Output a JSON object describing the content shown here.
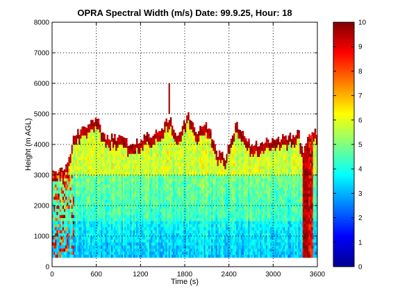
{
  "chart_data": {
    "type": "heatmap",
    "title": "OPRA Spectral Width (m/s)  Date: 99.9.25, Hour: 18",
    "xlabel": "Time (s)",
    "ylabel": "Height (m AGL)",
    "xlim": [
      0,
      3600
    ],
    "ylim": [
      0,
      8000
    ],
    "x_ticks": [
      "0",
      "600",
      "1200",
      "1800",
      "2400",
      "3000",
      "3600"
    ],
    "x_tick_values": [
      0,
      600,
      1200,
      1800,
      2400,
      3000,
      3600
    ],
    "y_ticks": [
      "0",
      "1000",
      "2000",
      "3000",
      "4000",
      "5000",
      "6000",
      "7000",
      "8000"
    ],
    "y_tick_values": [
      0,
      1000,
      2000,
      3000,
      4000,
      5000,
      6000,
      7000,
      8000
    ],
    "grid": true,
    "colorbar": {
      "range": [
        0,
        10
      ],
      "ticks": [
        "0",
        "1",
        "2",
        "3",
        "4",
        "5",
        "6",
        "7",
        "8",
        "9",
        "10"
      ],
      "tick_values": [
        0,
        1,
        2,
        3,
        4,
        5,
        6,
        7,
        8,
        9,
        10
      ],
      "colormap": "jet"
    },
    "data_height_bottom_m": 300,
    "echo_top_profile": {
      "time_s": [
        0,
        200,
        300,
        400,
        500,
        600,
        700,
        900,
        1100,
        1300,
        1450,
        1600,
        1700,
        1850,
        1950,
        2100,
        2250,
        2350,
        2500,
        2700,
        2900,
        3100,
        3250,
        3350,
        3400,
        3550,
        3600
      ],
      "top_m": [
        3100,
        3300,
        4300,
        4500,
        4600,
        4900,
        4300,
        4200,
        4000,
        4300,
        4400,
        4900,
        4300,
        5000,
        4400,
        4700,
        3700,
        3600,
        4700,
        4000,
        4100,
        4200,
        4300,
        4400,
        3800,
        4500,
        4300
      ]
    },
    "typical_width_m_s": {
      "lower_layer_300_1500m": 3.2,
      "mid_layer_1500_3000m": 4.3,
      "upper_layer_3000_top": 5.8,
      "cloud_top_edge": 9.5
    }
  }
}
